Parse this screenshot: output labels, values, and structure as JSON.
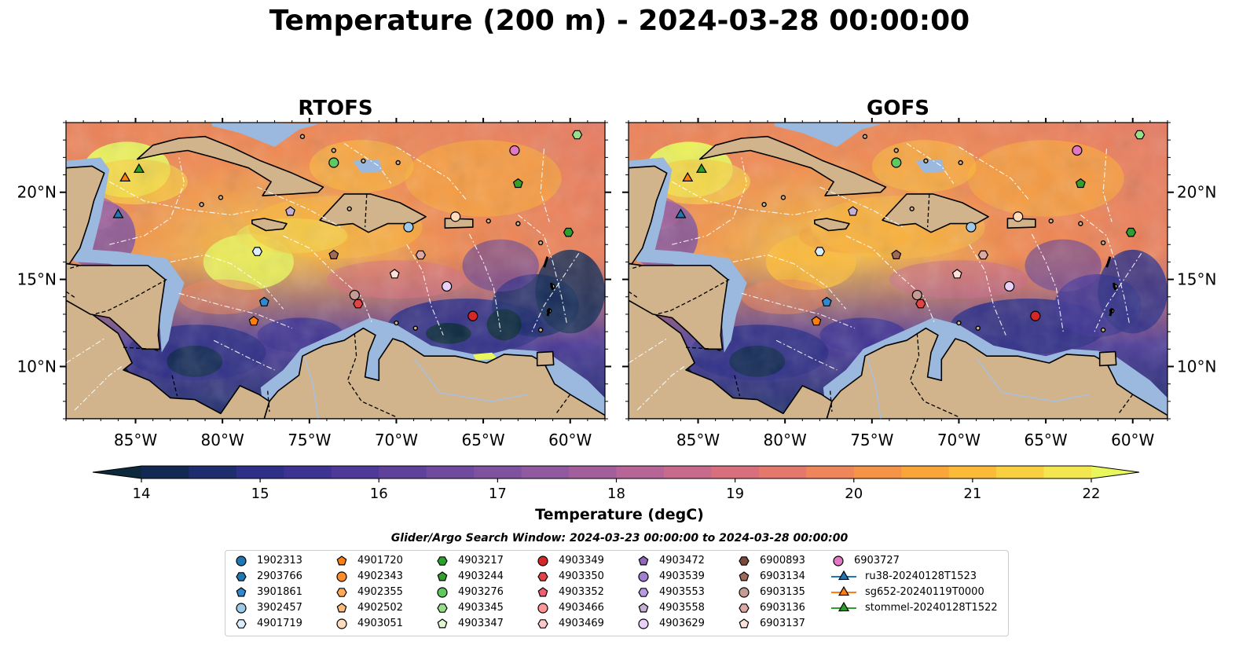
{
  "title": "Temperature (200 m) - 2024-03-28 00:00:00",
  "panels": [
    {
      "title": "RTOFS"
    },
    {
      "title": "GOFS"
    }
  ],
  "colorbar": {
    "label": "Temperature (degC)",
    "min": 14,
    "max": 22,
    "step": 0.5,
    "ticks": [
      "14",
      "15",
      "16",
      "17",
      "18",
      "19",
      "20",
      "21",
      "22"
    ],
    "extend": "both",
    "colors": [
      "#0c2a3c",
      "#122a53",
      "#1e2d6e",
      "#2e2f86",
      "#3d3393",
      "#4e3999",
      "#5f419c",
      "#6f4a9e",
      "#7f529f",
      "#91599f",
      "#a35f9c",
      "#b66596",
      "#c86a8c",
      "#d86f7d",
      "#e5786c",
      "#ef855a",
      "#f59446",
      "#f9a53a",
      "#fbba38",
      "#f9d040",
      "#f3e64f",
      "#eaf75c"
    ]
  },
  "legend_title": "Glider/Argo Search Window: 2024-03-23 00:00:00 to 2024-03-28 00:00:00",
  "colors": {
    "land": "#d2b48c",
    "shelf": "#9bb8df",
    "coast": "#000000"
  },
  "chart_data": {
    "type": "heatmap",
    "title": "Temperature (200 m) - 2024-03-28 00:00:00",
    "xlabel": "",
    "ylabel": "",
    "xlim": [
      -89,
      -58
    ],
    "ylim": [
      7,
      24
    ],
    "xticks": [
      "85°W",
      "80°W",
      "75°W",
      "70°W",
      "65°W",
      "60°W"
    ],
    "yticks": [
      "20°N",
      "15°N",
      "10°N"
    ],
    "x_tick_values": [
      -85,
      -80,
      -75,
      -70,
      -65,
      -60
    ],
    "y_tick_values": [
      20,
      15,
      10
    ],
    "value_range": [
      14,
      22
    ],
    "units": "degC",
    "markers": [
      {
        "id": "1902313",
        "shape": "circle",
        "color": "#1f77b4",
        "lon": null,
        "lat": null
      },
      {
        "id": "2903766",
        "shape": "hexagon",
        "color": "#1f77b4",
        "lon": null,
        "lat": null
      },
      {
        "id": "3901861",
        "shape": "pentagon",
        "color": "#2f89d0",
        "lon": -77.6,
        "lat": 13.7
      },
      {
        "id": "3902457",
        "shape": "circle",
        "color": "#9ecae9",
        "lon": -69.3,
        "lat": 18.0
      },
      {
        "id": "4901719",
        "shape": "hexagon",
        "color": "#dbeeff",
        "lon": -78.0,
        "lat": 16.6
      },
      {
        "id": "4901720",
        "shape": "pentagon",
        "color": "#ff7f0e",
        "lon": -78.2,
        "lat": 12.6
      },
      {
        "id": "4902343",
        "shape": "circle",
        "color": "#ff8c2a",
        "lon": null,
        "lat": null
      },
      {
        "id": "4902355",
        "shape": "hexagon",
        "color": "#ffaa55",
        "lon": null,
        "lat": null
      },
      {
        "id": "4902502",
        "shape": "pentagon",
        "color": "#ffbb78",
        "lon": null,
        "lat": null
      },
      {
        "id": "4903051",
        "shape": "circle",
        "color": "#ffdcbc",
        "lon": -66.6,
        "lat": 18.6
      },
      {
        "id": "4903217",
        "shape": "hexagon",
        "color": "#2ca02c",
        "lon": -60.1,
        "lat": 17.7
      },
      {
        "id": "4903244",
        "shape": "pentagon",
        "color": "#33a02c",
        "lon": -63.0,
        "lat": 20.5
      },
      {
        "id": "4903276",
        "shape": "circle",
        "color": "#5fc85f",
        "lon": -73.6,
        "lat": 21.7
      },
      {
        "id": "4903345",
        "shape": "hexagon",
        "color": "#98df8a",
        "lon": -59.6,
        "lat": 23.3
      },
      {
        "id": "4903347",
        "shape": "pentagon",
        "color": "#e0f8d0",
        "lon": null,
        "lat": null
      },
      {
        "id": "4903349",
        "shape": "circle",
        "color": "#d62728",
        "lon": -65.6,
        "lat": 12.9
      },
      {
        "id": "4903350",
        "shape": "hexagon",
        "color": "#e04444",
        "lon": -72.2,
        "lat": 13.6
      },
      {
        "id": "4903352",
        "shape": "pentagon",
        "color": "#f06070",
        "lon": null,
        "lat": null
      },
      {
        "id": "4903466",
        "shape": "circle",
        "color": "#ff9896",
        "lon": null,
        "lat": null
      },
      {
        "id": "4903469",
        "shape": "hexagon",
        "color": "#ffc8c8",
        "lon": null,
        "lat": null
      },
      {
        "id": "4903472",
        "shape": "pentagon",
        "color": "#9467bd",
        "lon": null,
        "lat": null
      },
      {
        "id": "4903539",
        "shape": "circle",
        "color": "#a07ed0",
        "lon": null,
        "lat": null
      },
      {
        "id": "4903553",
        "shape": "hexagon",
        "color": "#b99ae0",
        "lon": null,
        "lat": null
      },
      {
        "id": "4903558",
        "shape": "pentagon",
        "color": "#c5b0d5",
        "lon": -76.1,
        "lat": 18.9
      },
      {
        "id": "4903629",
        "shape": "circle",
        "color": "#e8d0f8",
        "lon": -67.1,
        "lat": 14.6
      },
      {
        "id": "6900893",
        "shape": "hexagon",
        "color": "#7b4a3a",
        "lon": null,
        "lat": null
      },
      {
        "id": "6903134",
        "shape": "pentagon",
        "color": "#a06a5a",
        "lon": -73.6,
        "lat": 16.4
      },
      {
        "id": "6903135",
        "shape": "circle",
        "color": "#c49c94",
        "lon": -72.4,
        "lat": 14.1
      },
      {
        "id": "6903136",
        "shape": "hexagon",
        "color": "#dcaaa4",
        "lon": -68.6,
        "lat": 16.4
      },
      {
        "id": "6903137",
        "shape": "pentagon",
        "color": "#fde0d8",
        "lon": -70.1,
        "lat": 15.3
      },
      {
        "id": "6903727",
        "shape": "circle",
        "color": "#e377c2",
        "lon": -63.2,
        "lat": 22.4
      },
      {
        "id": "ru38-20240128T1523",
        "shape": "triangle",
        "color": "#1f77b4",
        "lon": -86.0,
        "lat": 18.7,
        "line": true
      },
      {
        "id": "sg652-20240119T0000",
        "shape": "triangle",
        "color": "#ff7f0e",
        "lon": -85.6,
        "lat": 20.8,
        "line": true
      },
      {
        "id": "stommel-20240128T1522",
        "shape": "triangle",
        "color": "#2ca02c",
        "lon": -84.8,
        "lat": 21.3,
        "line": true
      }
    ]
  }
}
